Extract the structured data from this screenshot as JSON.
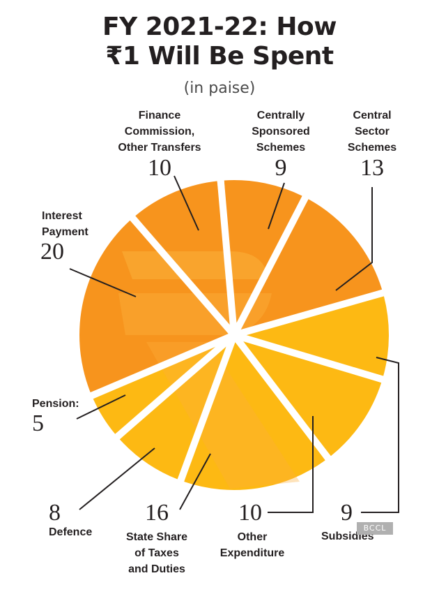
{
  "chart_data": {
    "type": "pie",
    "title_line1": "FY 2021-22: How",
    "title_line2": "₹1 Will Be Spent",
    "subtitle": "(in paise)",
    "slices": [
      {
        "label": "Centrally Sponsored Schemes",
        "label_lines": [
          "Centrally",
          "Sponsored",
          "Schemes"
        ],
        "value": 9,
        "value_text": "9"
      },
      {
        "label": "Central Sector Schemes",
        "label_lines": [
          "Central",
          "Sector",
          "Schemes"
        ],
        "value": 13,
        "value_text": "13"
      },
      {
        "label": "Subsidies",
        "label_lines": [
          "Subsidies"
        ],
        "value": 9,
        "value_text": "9"
      },
      {
        "label": "Other Expenditure",
        "label_lines": [
          "Other",
          "Expenditure"
        ],
        "value": 10,
        "value_text": "10"
      },
      {
        "label": "State Share of Taxes and Duties",
        "label_lines": [
          "State Share",
          "of Taxes",
          "and Duties"
        ],
        "value": 16,
        "value_text": "16"
      },
      {
        "label": "Defence",
        "label_lines": [
          "Defence"
        ],
        "value": 8,
        "value_text": "8"
      },
      {
        "label": "Pension:",
        "label_lines": [
          "Pension:"
        ],
        "value": 5,
        "value_text": "5"
      },
      {
        "label": "Interest Payment",
        "label_lines": [
          "Interest",
          "Payment"
        ],
        "value": 20,
        "value_text": "20"
      },
      {
        "label": "Finance Commission, Other Transfers",
        "label_lines": [
          "Finance",
          "Commission,",
          "Other Transfers"
        ],
        "value": 10,
        "value_text": "10"
      }
    ],
    "colors": {
      "upper": "#f7941d",
      "lower": "#fdb913",
      "symbol": "#fbb03b",
      "gap": "#ffffff",
      "leader": "#231f20"
    }
  },
  "watermark": "BCCL"
}
